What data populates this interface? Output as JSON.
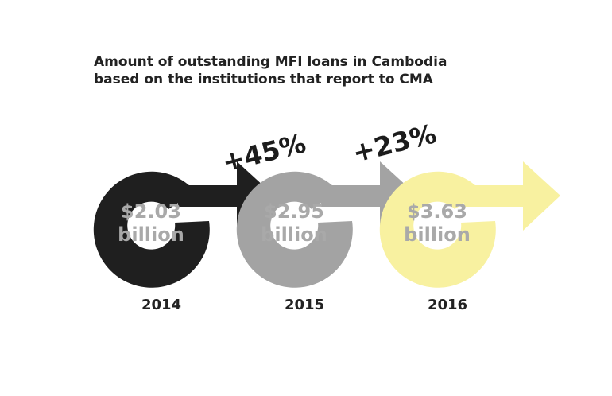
{
  "chart_data": {
    "type": "bar",
    "title": "Amount of outstanding MFI loans in Cambodia",
    "subtitle": "based on the institutions that report to CMA",
    "categories": [
      "2014",
      "2015",
      "2016"
    ],
    "values": [
      2.03,
      2.95,
      3.63
    ],
    "value_labels": [
      {
        "amount": "$2.03",
        "unit": "billion"
      },
      {
        "amount": "$2.95",
        "unit": "billion"
      },
      {
        "amount": "$3.63",
        "unit": "billion"
      }
    ],
    "growth_labels": [
      "+45%",
      "+23%"
    ],
    "colors": {
      "2014": "#1f1f1f",
      "2015": "#a3a3a3",
      "2016": "#f8f1a0",
      "value_text": "#a9a9a9",
      "value_text_2016": "#a9a9a9"
    }
  }
}
